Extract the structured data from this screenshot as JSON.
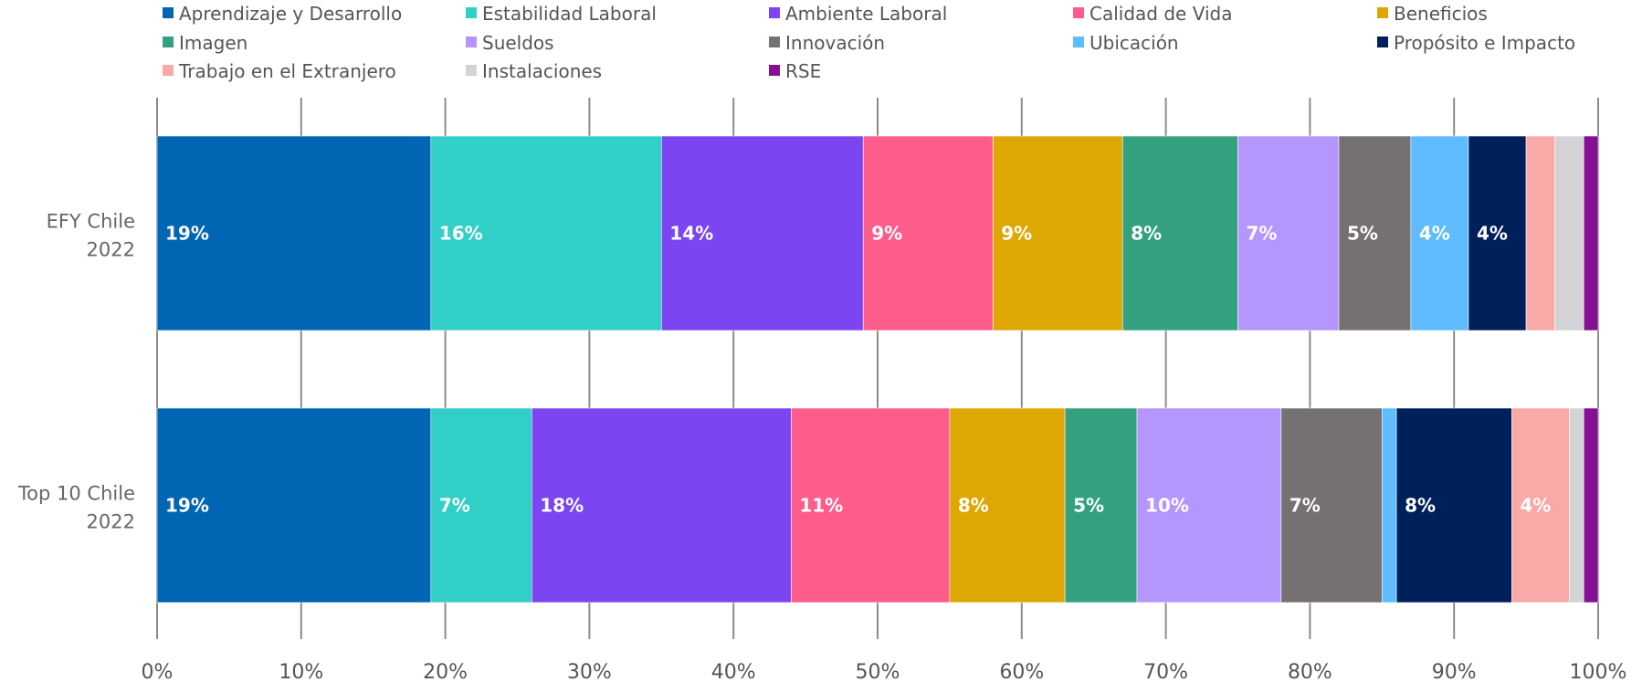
{
  "chart_data": {
    "type": "bar",
    "orientation": "horizontal",
    "stacked": true,
    "percent_stacked": true,
    "categories": [
      "EFY Chile 2022",
      "Top 10 Chile 2022"
    ],
    "category_lines": [
      [
        "EFY Chile",
        "2022"
      ],
      [
        "Top 10 Chile",
        "2022"
      ]
    ],
    "xlim": [
      0,
      100
    ],
    "x_ticks": [
      "0%",
      "10%",
      "20%",
      "30%",
      "40%",
      "50%",
      "60%",
      "70%",
      "80%",
      "90%",
      "100%"
    ],
    "grid": true,
    "legend_position": "top",
    "series": [
      {
        "name": "Aprendizaje y Desarrollo",
        "color": "#0066b3",
        "values": [
          19,
          19
        ],
        "labels": [
          "19%",
          "19%"
        ]
      },
      {
        "name": "Estabilidad Laboral",
        "color": "#31cfc8",
        "values": [
          16,
          7
        ],
        "labels": [
          "16%",
          "7%"
        ]
      },
      {
        "name": "Ambiente Laboral",
        "color": "#7b45f2",
        "values": [
          14,
          18
        ],
        "labels": [
          "14%",
          "18%"
        ]
      },
      {
        "name": "Calidad de Vida",
        "color": "#fe5c8a",
        "values": [
          9,
          11
        ],
        "labels": [
          "9%",
          "11%"
        ]
      },
      {
        "name": "Beneficios",
        "color": "#dea703",
        "values": [
          9,
          8
        ],
        "labels": [
          "9%",
          "8%"
        ]
      },
      {
        "name": "Imagen",
        "color": "#33a17f",
        "values": [
          8,
          5
        ],
        "labels": [
          "8%",
          "5%"
        ]
      },
      {
        "name": "Sueldos",
        "color": "#b596fd",
        "values": [
          7,
          10
        ],
        "labels": [
          "7%",
          "10%"
        ]
      },
      {
        "name": "Innovación",
        "color": "#757071",
        "values": [
          5,
          7
        ],
        "labels": [
          "5%",
          "7%"
        ]
      },
      {
        "name": "Ubicación",
        "color": "#5ebcff",
        "values": [
          4,
          1
        ],
        "labels": [
          "4%",
          ""
        ]
      },
      {
        "name": "Propósito e Impacto",
        "color": "#00205c",
        "values": [
          4,
          8
        ],
        "labels": [
          "4%",
          "8%"
        ]
      },
      {
        "name": "Trabajo en el Extranjero",
        "color": "#fba8a9",
        "values": [
          2,
          4
        ],
        "labels": [
          "",
          "4%"
        ]
      },
      {
        "name": "Instalaciones",
        "color": "#d3d3d5",
        "values": [
          2,
          1
        ],
        "labels": [
          "",
          ""
        ]
      },
      {
        "name": "RSE",
        "color": "#870f93",
        "values": [
          1,
          1
        ],
        "labels": [
          "",
          ""
        ]
      }
    ]
  }
}
